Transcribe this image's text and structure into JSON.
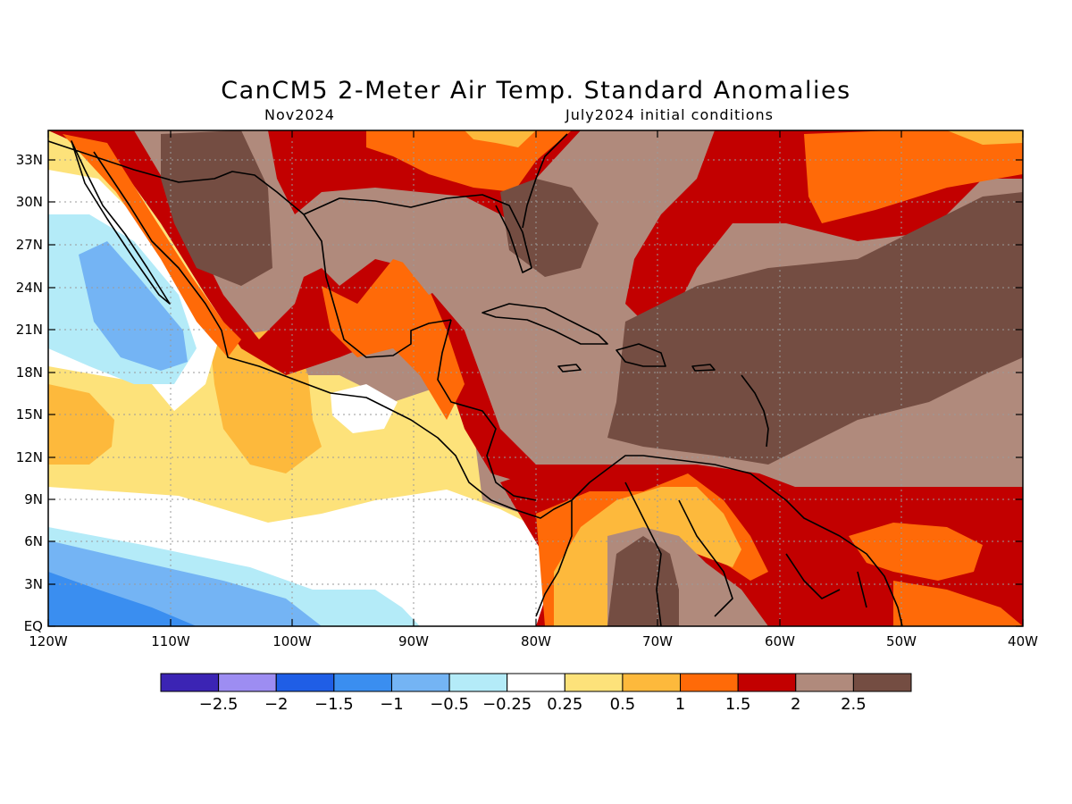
{
  "title": "CanCM5 2-Meter Air Temp. Standard Anomalies",
  "subtitle_left": "Nov2024",
  "subtitle_right": "July2024 initial conditions",
  "lat_labels": [
    "33N",
    "30N",
    "27N",
    "24N",
    "21N",
    "18N",
    "15N",
    "12N",
    "9N",
    "6N",
    "3N",
    "EQ"
  ],
  "lon_labels": [
    "120W",
    "110W",
    "100W",
    "90W",
    "80W",
    "70W",
    "60W",
    "50W",
    "40W"
  ],
  "colorbar": {
    "colors": [
      "#3b24b4",
      "#9d8df2",
      "#1f5ee6",
      "#3a8ef0",
      "#74b4f4",
      "#b4ebf8",
      "#ffffff",
      "#fde27a",
      "#fdb93c",
      "#ff6a08",
      "#c20000",
      "#b08a7c",
      "#744d42"
    ],
    "labels": [
      "-2.5",
      "-2",
      "-1.5",
      "-1",
      "-0.5",
      "-0.25",
      "0.25",
      "0.5",
      "1",
      "1.5",
      "2",
      "2.5"
    ]
  },
  "palette": {
    "white": "#ffffff",
    "light_cyan": "#b4ebf8",
    "light_blue": "#74b4f4",
    "blue": "#3a8ef0",
    "yellow": "#fde27a",
    "orange_light": "#fdb93c",
    "orange": "#ff6a08",
    "red": "#c20000",
    "tan": "#b08a7c",
    "brown": "#744d42"
  }
}
